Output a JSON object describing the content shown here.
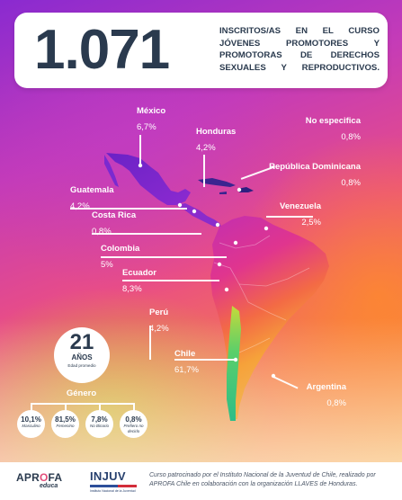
{
  "header": {
    "total": "1.071",
    "description": "INSCRITOS/AS EN EL CURSO JÓVENES PROMOTORES Y PROMOTORAS DE DERECHOS SEXUALES Y REPRODUCTIVOS."
  },
  "countries": {
    "mexico": {
      "name": "México",
      "value": "6,7%"
    },
    "honduras": {
      "name": "Honduras",
      "value": "4,2%"
    },
    "no_especifica": {
      "name": "No especifica",
      "value": "0,8%"
    },
    "republica_dominicana": {
      "name": "República Dominicana",
      "value": "0,8%"
    },
    "guatemala": {
      "name": "Guatemala",
      "value": "4,2%"
    },
    "costa_rica": {
      "name": "Costa Rica",
      "value": "0,8%"
    },
    "venezuela": {
      "name": "Venezuela",
      "value": "2,5%"
    },
    "colombia": {
      "name": "Colombia",
      "value": "5%"
    },
    "ecuador": {
      "name": "Ecuador",
      "value": "8,3%"
    },
    "peru": {
      "name": "Perú",
      "value": "4,2%"
    },
    "chile": {
      "name": "Chile",
      "value": "61,7%"
    },
    "argentina": {
      "name": "Argentina",
      "value": "0,8%"
    }
  },
  "age": {
    "number": "21",
    "unit": "AÑOS",
    "caption": "Edad promedio"
  },
  "gender": {
    "title": "Género",
    "items": [
      {
        "pct": "10,1%",
        "label": "Masculino"
      },
      {
        "pct": "81,5%",
        "label": "Femenino"
      },
      {
        "pct": "7,8%",
        "label": "No Binario"
      },
      {
        "pct": "0,8%",
        "label": "Prefiero no decirlo"
      }
    ]
  },
  "footer": {
    "logo_aprofa_pre": "APR",
    "logo_aprofa_o": "O",
    "logo_aprofa_post": "FA",
    "logo_aprofa_sub": "educa",
    "logo_injuv": "INJUV",
    "logo_injuv_sub": "Instituto Nacional de la Juventud",
    "text": "Curso patrocinado por el Instituto Nacional de la Juventud de Chile, realizado por APROFA Chile en colaboración con la organización LLAVES de Honduras."
  },
  "colors": {
    "dark_text": "#2a3a4e",
    "mexico_region": "#7a2ad0",
    "south_america_north": "#d32fa0",
    "south_america_mid": "#f07040",
    "chile_region": "#3ec67a"
  }
}
